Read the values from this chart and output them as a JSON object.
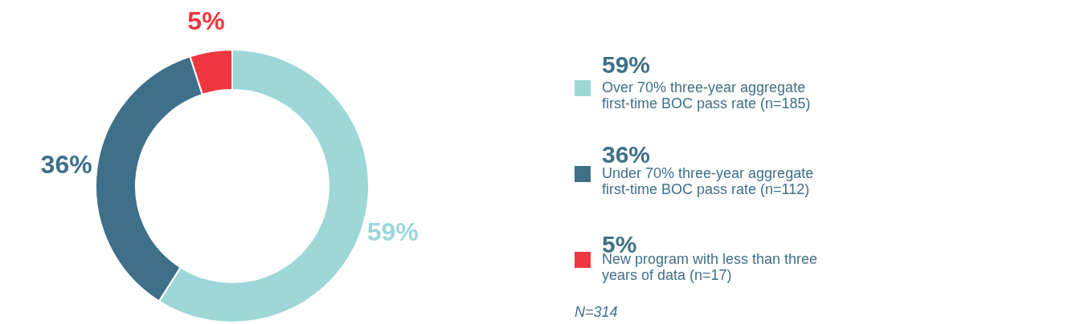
{
  "chart_data": {
    "type": "donut",
    "categories": [
      "Over 70% three-year aggregate first-time BOC pass rate (n=185)",
      "Under 70% three-year aggregate first-time BOC pass rate (n=112)",
      "New program with less than three years of data (n=17)"
    ],
    "values": [
      59,
      36,
      5
    ],
    "colors": [
      "#9dd7d8",
      "#3f7089",
      "#ef3740"
    ],
    "value_labels": [
      "59%",
      "36%",
      "5%"
    ],
    "legend": "right",
    "annotations": [
      "N=314"
    ]
  }
}
